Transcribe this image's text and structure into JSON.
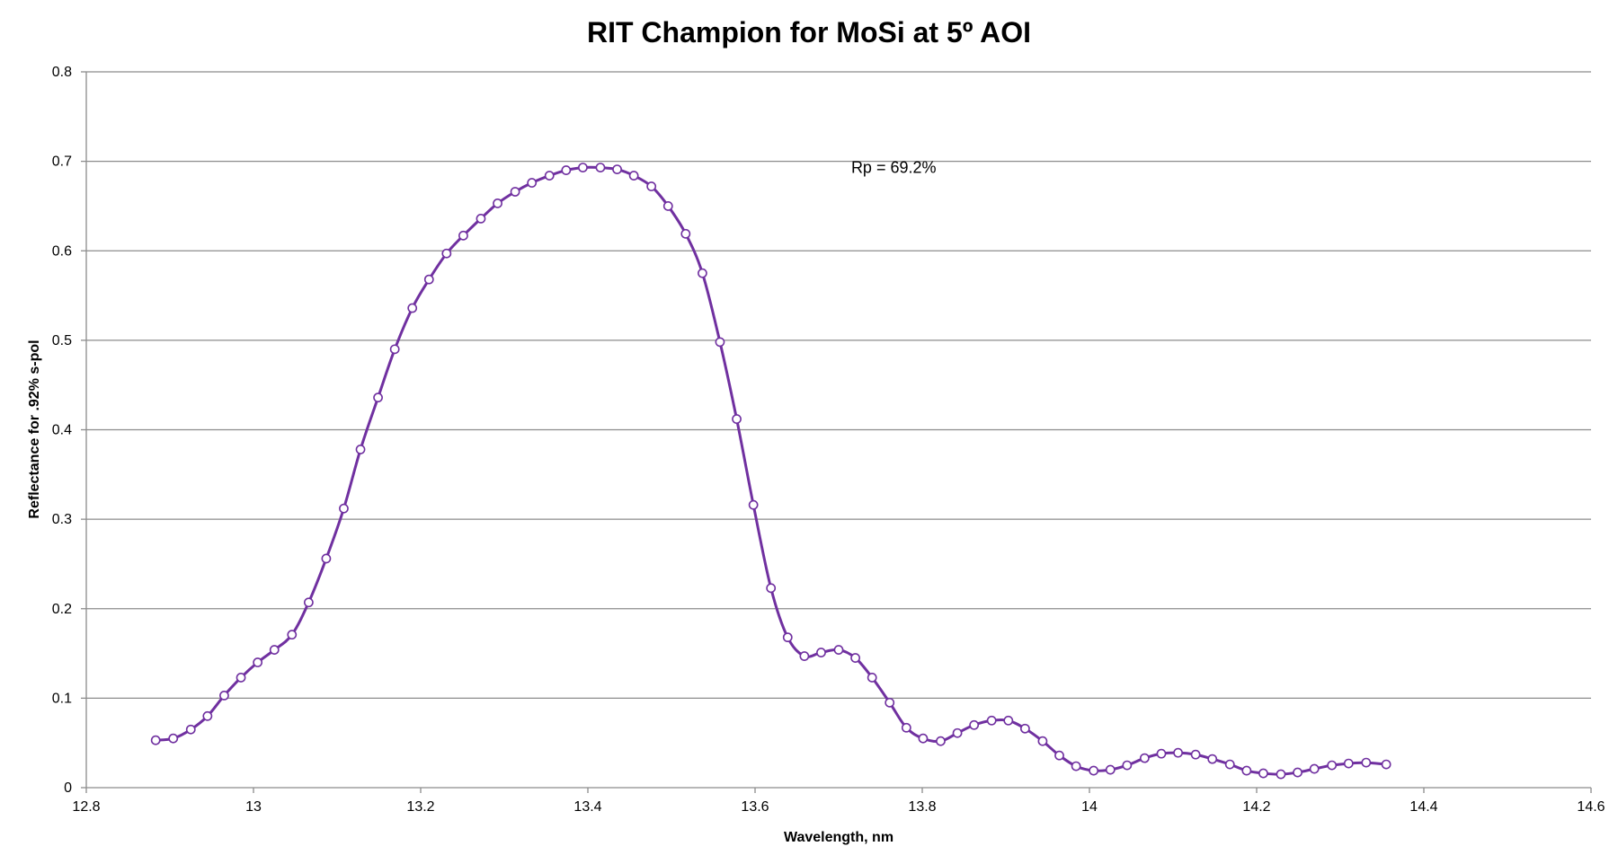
{
  "chart_data": {
    "type": "line",
    "title": "RIT Champion for MoSi at 5º AOI",
    "xlabel": "Wavelength, nm",
    "ylabel": "Reflectance for .92% s-pol",
    "xlim": [
      12.8,
      14.6
    ],
    "ylim": [
      0,
      0.8
    ],
    "xticks": [
      "12.8",
      "13",
      "13.2",
      "13.4",
      "13.6",
      "13.8",
      "14",
      "14.2",
      "14.4",
      "14.6"
    ],
    "yticks": [
      "0",
      "0.1",
      "0.2",
      "0.3",
      "0.4",
      "0.5",
      "0.6",
      "0.7",
      "0.8"
    ],
    "grid": "horizontal",
    "legend": "none",
    "annotation": {
      "text": "Rp = 69.2%",
      "x": 13.715,
      "y": 0.687
    },
    "series": [
      {
        "color": "#7030a0",
        "marker": "open-circle",
        "x": [
          12.883,
          12.904,
          12.925,
          12.945,
          12.965,
          12.985,
          13.005,
          13.025,
          13.046,
          13.066,
          13.087,
          13.108,
          13.128,
          13.149,
          13.169,
          13.19,
          13.21,
          13.231,
          13.251,
          13.272,
          13.292,
          13.313,
          13.333,
          13.354,
          13.374,
          13.394,
          13.415,
          13.435,
          13.455,
          13.476,
          13.496,
          13.517,
          13.537,
          13.558,
          13.578,
          13.598,
          13.619,
          13.639,
          13.659,
          13.679,
          13.7,
          13.72,
          13.74,
          13.761,
          13.781,
          13.801,
          13.822,
          13.842,
          13.862,
          13.883,
          13.903,
          13.923,
          13.944,
          13.964,
          13.984,
          14.005,
          14.025,
          14.045,
          14.066,
          14.086,
          14.106,
          14.127,
          14.147,
          14.168,
          14.188,
          14.208,
          14.229,
          14.249,
          14.269,
          14.29,
          14.31,
          14.331,
          14.355
        ],
        "values": [
          0.053,
          0.055,
          0.065,
          0.08,
          0.103,
          0.123,
          0.14,
          0.154,
          0.171,
          0.207,
          0.256,
          0.312,
          0.378,
          0.436,
          0.49,
          0.536,
          0.568,
          0.597,
          0.617,
          0.636,
          0.653,
          0.666,
          0.676,
          0.684,
          0.69,
          0.693,
          0.693,
          0.691,
          0.684,
          0.672,
          0.65,
          0.619,
          0.575,
          0.498,
          0.412,
          0.316,
          0.223,
          0.168,
          0.147,
          0.151,
          0.154,
          0.145,
          0.123,
          0.095,
          0.067,
          0.055,
          0.052,
          0.061,
          0.07,
          0.075,
          0.075,
          0.066,
          0.052,
          0.036,
          0.024,
          0.019,
          0.02,
          0.025,
          0.033,
          0.038,
          0.039,
          0.037,
          0.032,
          0.026,
          0.019,
          0.016,
          0.015,
          0.017,
          0.021,
          0.025,
          0.027,
          0.028,
          0.026
        ]
      }
    ]
  }
}
